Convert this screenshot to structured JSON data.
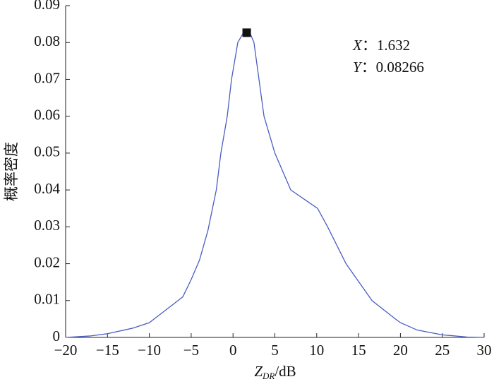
{
  "chart_data": {
    "type": "line",
    "ylabel": "概率密度",
    "xlabel": {
      "main": "Z",
      "sub": "DR",
      "unit": "/dB"
    },
    "series": [
      {
        "color": "#4a5cc4",
        "x": [
          -20,
          -17,
          -15,
          -12,
          -10,
          -8,
          -6,
          -5,
          -4,
          -3,
          -2,
          -1.45,
          -0.69,
          -0.18,
          0.57,
          1.2,
          1.632,
          2.1,
          2.5,
          3.1,
          3.7,
          5.0,
          6.9,
          8.5,
          10.1,
          11.3,
          13.5,
          16.6,
          19.4,
          20,
          22,
          25,
          28,
          30
        ],
        "values": [
          0,
          0.0004,
          0.001,
          0.0025,
          0.004,
          0.0075,
          0.011,
          0.0157,
          0.021,
          0.029,
          0.04,
          0.05,
          0.06,
          0.07,
          0.08,
          0.0825,
          0.08266,
          0.0822,
          0.08,
          0.07,
          0.06,
          0.05,
          0.04,
          0.0375,
          0.035,
          0.03,
          0.02,
          0.01,
          0.005,
          0.004,
          0.002,
          0.0007,
          0.0001,
          0
        ]
      }
    ],
    "annotation": {
      "x": 1.632,
      "y": 0.08266,
      "x_name": "X",
      "x_text": "：1.632",
      "y_name": "Y",
      "y_text": "：0.08266"
    },
    "xlim": [
      -20,
      30
    ],
    "xticks": [
      {
        "value": -20,
        "label": "−20"
      },
      {
        "value": -15,
        "label": "−15"
      },
      {
        "value": -10,
        "label": "−10"
      },
      {
        "value": -5,
        "label": "−5"
      },
      0,
      5,
      10,
      15,
      20,
      25,
      30
    ],
    "ylim": [
      0,
      0.09
    ],
    "yticks": [
      0,
      0.01,
      0.02,
      0.03,
      0.04,
      0.05,
      0.06,
      0.07,
      0.08,
      0.09
    ]
  }
}
